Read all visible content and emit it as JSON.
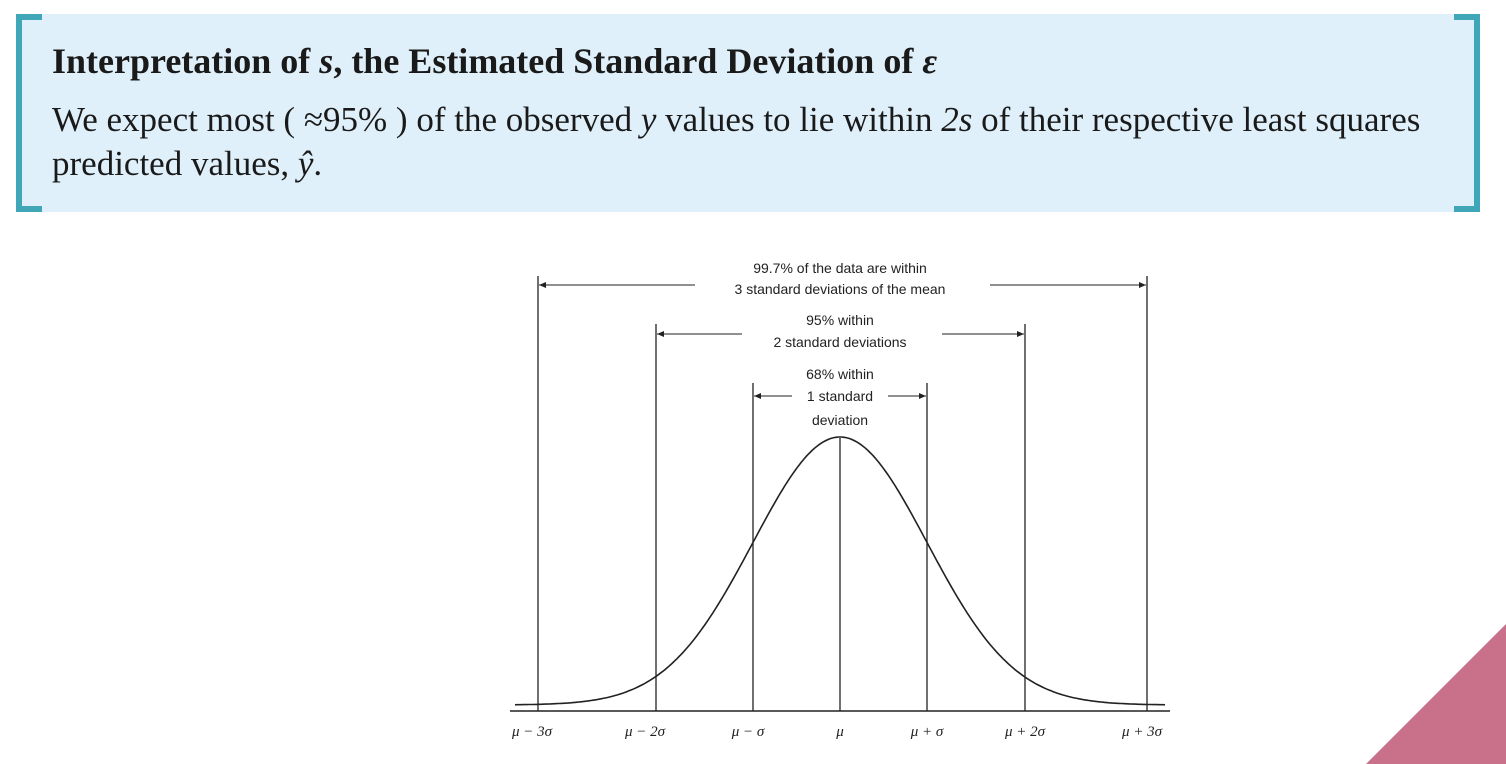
{
  "callout": {
    "title_prefix": "Interpretation of ",
    "title_s": "s",
    "title_middle": ", the Estimated Standard Deviation of ",
    "title_eps": "ε",
    "body_1": "We expect most ( ≈95% ) of the observed ",
    "body_y": "y",
    "body_2": " values to lie within ",
    "body_2s": "2s",
    "body_3": " of their respective least squares predicted values, ",
    "body_yhat": "ŷ",
    "body_4": "."
  },
  "diagram": {
    "label_997_line1": "99.7% of the data are within",
    "label_997_line2": "3 standard deviations of the mean",
    "label_95_line1": "95% within",
    "label_95_line2": "2 standard deviations",
    "label_68_line1": "68% within",
    "label_68_line2": "1 standard",
    "label_68_line3": "deviation",
    "ticks": [
      "μ − 3σ",
      "μ − 2σ",
      "μ − σ",
      "μ",
      "μ + σ",
      "μ + 2σ",
      "μ + 3σ"
    ]
  },
  "colors": {
    "callout_bg": "#dff0fa",
    "bracket": "#3fa7b8",
    "corner_accent": "#c9718a"
  }
}
